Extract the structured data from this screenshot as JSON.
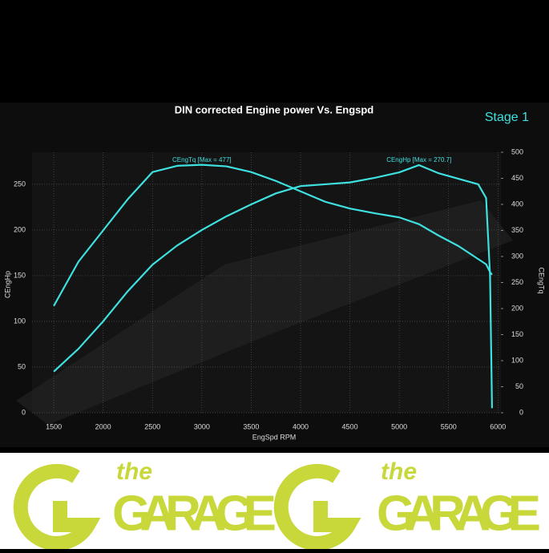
{
  "chart_data": {
    "type": "line",
    "title": "DIN corrected Engine power Vs. Engspd",
    "subtitle": "Stage 1",
    "x_label": "EngSpd RPM",
    "y_label": "CEngHp",
    "y2_label": "CEngTq",
    "x": [
      1500,
      1750,
      2000,
      2250,
      2500,
      2750,
      3000,
      3250,
      3500,
      3750,
      4000,
      4250,
      4500,
      4750,
      5000,
      5200,
      5400,
      5600,
      5800,
      5880,
      5920,
      5940
    ],
    "series": [
      {
        "name": "CEngHp [Max = 270.7]",
        "color": "#3fe0e0",
        "values": [
          45,
          70,
          100,
          133,
          162,
          183,
          200,
          215,
          228,
          240,
          248,
          250,
          252,
          257,
          263,
          271,
          262,
          256,
          250,
          235,
          150,
          5
        ]
      },
      {
        "name": "CEngTq [Max = 477]",
        "color": "#3fe0e0",
        "axis": "y2",
        "values": [
          205,
          290,
          350,
          410,
          462,
          474,
          476,
          473,
          462,
          445,
          425,
          405,
          392,
          383,
          375,
          362,
          340,
          320,
          295,
          285,
          270,
          265
        ]
      }
    ],
    "xlim": [
      1280,
      6030
    ],
    "xticks": [
      1500,
      2000,
      2500,
      3000,
      3500,
      4000,
      4500,
      5000,
      5500,
      6000
    ],
    "ylim": [
      0,
      285
    ],
    "yticks": [
      0,
      50,
      100,
      150,
      200,
      250
    ],
    "y2lim": [
      0,
      500
    ],
    "y2ticks": [
      0,
      50,
      100,
      150,
      200,
      250,
      300,
      350,
      400,
      450,
      500
    ],
    "grid": true
  },
  "banner": {
    "logos": [
      {
        "small": "the",
        "big": "GARAGE"
      },
      {
        "small": "the",
        "big": "GARAGE"
      }
    ]
  }
}
